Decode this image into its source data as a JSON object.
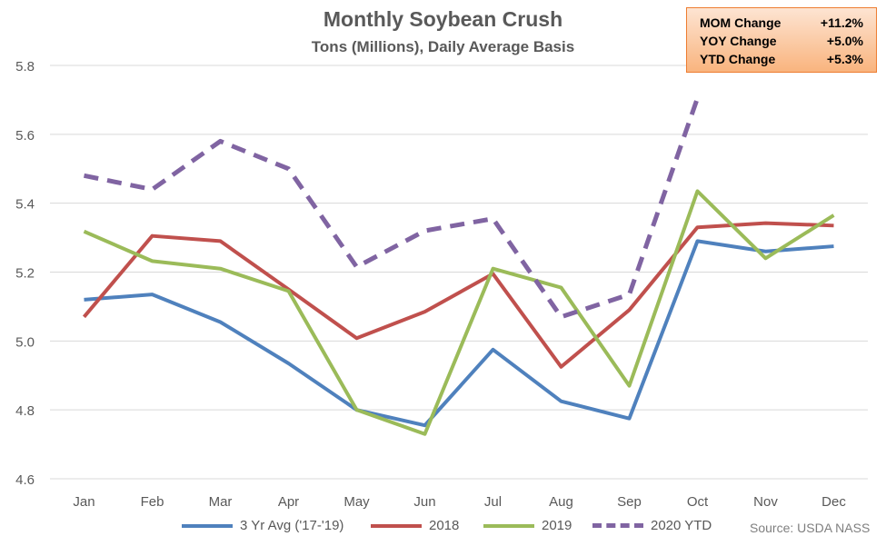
{
  "chart_data": {
    "type": "line",
    "title": "Monthly Soybean Crush",
    "subtitle": "Tons (Millions), Daily Average Basis",
    "categories": [
      "Jan",
      "Feb",
      "Mar",
      "Apr",
      "May",
      "Jun",
      "Jul",
      "Aug",
      "Sep",
      "Oct",
      "Nov",
      "Dec"
    ],
    "ylim": [
      4.6,
      5.8
    ],
    "yticks": [
      "4.6",
      "4.8",
      "5.0",
      "5.2",
      "5.4",
      "5.6",
      "5.8"
    ],
    "grid": true,
    "legend_position": "bottom",
    "series": [
      {
        "name": "3 Yr Avg ('17-'19)",
        "color": "#4f81bd",
        "dashed": false,
        "values": [
          5.12,
          5.135,
          5.055,
          4.935,
          4.8,
          4.755,
          4.975,
          4.825,
          4.775,
          5.29,
          5.26,
          5.275
        ]
      },
      {
        "name": "2018",
        "color": "#c0504d",
        "dashed": false,
        "values": [
          5.07,
          5.305,
          5.29,
          5.15,
          5.008,
          5.085,
          5.195,
          4.925,
          5.09,
          5.33,
          5.342,
          5.335
        ]
      },
      {
        "name": "2019",
        "color": "#9bbb59",
        "dashed": false,
        "values": [
          5.318,
          5.232,
          5.21,
          5.145,
          4.8,
          4.73,
          5.21,
          5.155,
          4.87,
          5.435,
          5.24,
          5.365
        ]
      },
      {
        "name": "2020 YTD",
        "color": "#8064a2",
        "dashed": true,
        "values": [
          5.48,
          5.44,
          5.58,
          5.5,
          5.215,
          5.32,
          5.355,
          5.07,
          5.135,
          5.705,
          null,
          null
        ]
      }
    ]
  },
  "stats_box": {
    "rows": [
      {
        "label": "MOM Change",
        "value": "+11.2%"
      },
      {
        "label": "YOY Change",
        "value": "+5.0%"
      },
      {
        "label": "YTD Change",
        "value": "+5.3%"
      }
    ]
  },
  "source": "Source: USDA NASS"
}
